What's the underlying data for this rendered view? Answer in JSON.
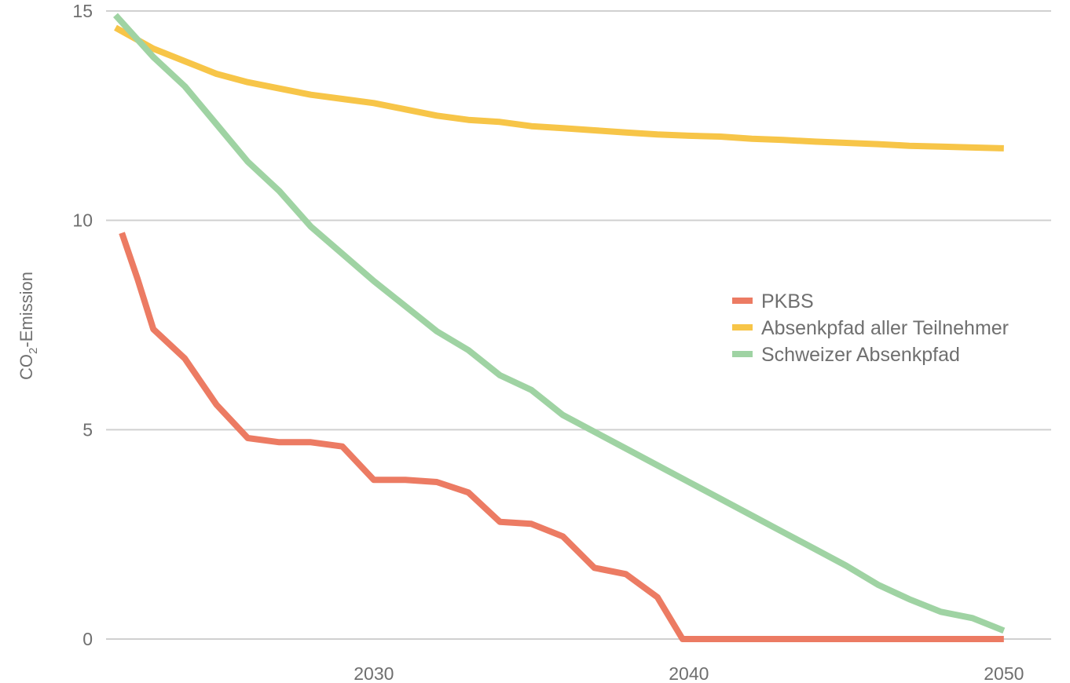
{
  "chart_data": {
    "type": "line",
    "ylabel_main": "CO",
    "ylabel_sub": "2",
    "ylabel_rest": "-Emission",
    "ylim": [
      0,
      15
    ],
    "xlim": [
      2021.5,
      2051.5
    ],
    "y_ticks": [
      0,
      5,
      10,
      15
    ],
    "x_ticks": [
      2030,
      2040,
      2050
    ],
    "grid": true,
    "legend_position": "right",
    "series": [
      {
        "name": "PKBS",
        "color": "#ec7b63",
        "points": [
          [
            2022.0,
            9.7
          ],
          [
            2022.5,
            8.6
          ],
          [
            2023.0,
            7.4
          ],
          [
            2024.0,
            6.7
          ],
          [
            2025.0,
            5.6
          ],
          [
            2026.0,
            4.8
          ],
          [
            2027.0,
            4.7
          ],
          [
            2028.0,
            4.7
          ],
          [
            2029.0,
            4.6
          ],
          [
            2030.0,
            3.8
          ],
          [
            2031.0,
            3.8
          ],
          [
            2032.0,
            3.75
          ],
          [
            2033.0,
            3.5
          ],
          [
            2034.0,
            2.8
          ],
          [
            2035.0,
            2.75
          ],
          [
            2036.0,
            2.45
          ],
          [
            2037.0,
            1.7
          ],
          [
            2038.0,
            1.55
          ],
          [
            2039.0,
            1.0
          ],
          [
            2039.8,
            0.0
          ],
          [
            2045.0,
            0.0
          ],
          [
            2050.0,
            0.0
          ]
        ]
      },
      {
        "name": "Absenkpfad aller Teilnehmer",
        "color": "#f7c548",
        "points": [
          [
            2021.8,
            14.6
          ],
          [
            2023.0,
            14.1
          ],
          [
            2024.0,
            13.8
          ],
          [
            2025.0,
            13.5
          ],
          [
            2026.0,
            13.3
          ],
          [
            2027.0,
            13.15
          ],
          [
            2028.0,
            13.0
          ],
          [
            2029.0,
            12.9
          ],
          [
            2030.0,
            12.8
          ],
          [
            2031.0,
            12.65
          ],
          [
            2032.0,
            12.5
          ],
          [
            2033.0,
            12.4
          ],
          [
            2034.0,
            12.35
          ],
          [
            2035.0,
            12.25
          ],
          [
            2036.0,
            12.2
          ],
          [
            2037.0,
            12.15
          ],
          [
            2038.0,
            12.1
          ],
          [
            2039.0,
            12.05
          ],
          [
            2040.0,
            12.02
          ],
          [
            2041.0,
            12.0
          ],
          [
            2042.0,
            11.95
          ],
          [
            2043.0,
            11.92
          ],
          [
            2044.0,
            11.88
          ],
          [
            2045.0,
            11.85
          ],
          [
            2046.0,
            11.82
          ],
          [
            2047.0,
            11.78
          ],
          [
            2048.0,
            11.76
          ],
          [
            2049.0,
            11.74
          ],
          [
            2050.0,
            11.72
          ]
        ]
      },
      {
        "name": "Schweizer Absenkpfad",
        "color": "#9fd3a3",
        "points": [
          [
            2021.8,
            14.9
          ],
          [
            2023.0,
            13.9
          ],
          [
            2024.0,
            13.2
          ],
          [
            2025.0,
            12.3
          ],
          [
            2026.0,
            11.4
          ],
          [
            2027.0,
            10.7
          ],
          [
            2028.0,
            9.85
          ],
          [
            2029.0,
            9.2
          ],
          [
            2030.0,
            8.55
          ],
          [
            2031.0,
            7.95
          ],
          [
            2032.0,
            7.35
          ],
          [
            2033.0,
            6.9
          ],
          [
            2034.0,
            6.3
          ],
          [
            2035.0,
            5.95
          ],
          [
            2036.0,
            5.35
          ],
          [
            2037.0,
            4.95
          ],
          [
            2038.0,
            4.55
          ],
          [
            2039.0,
            4.15
          ],
          [
            2040.0,
            3.75
          ],
          [
            2041.0,
            3.35
          ],
          [
            2042.0,
            2.95
          ],
          [
            2043.0,
            2.55
          ],
          [
            2044.0,
            2.15
          ],
          [
            2045.0,
            1.75
          ],
          [
            2046.0,
            1.3
          ],
          [
            2047.0,
            0.95
          ],
          [
            2048.0,
            0.65
          ],
          [
            2049.0,
            0.5
          ],
          [
            2050.0,
            0.2
          ]
        ]
      }
    ]
  }
}
